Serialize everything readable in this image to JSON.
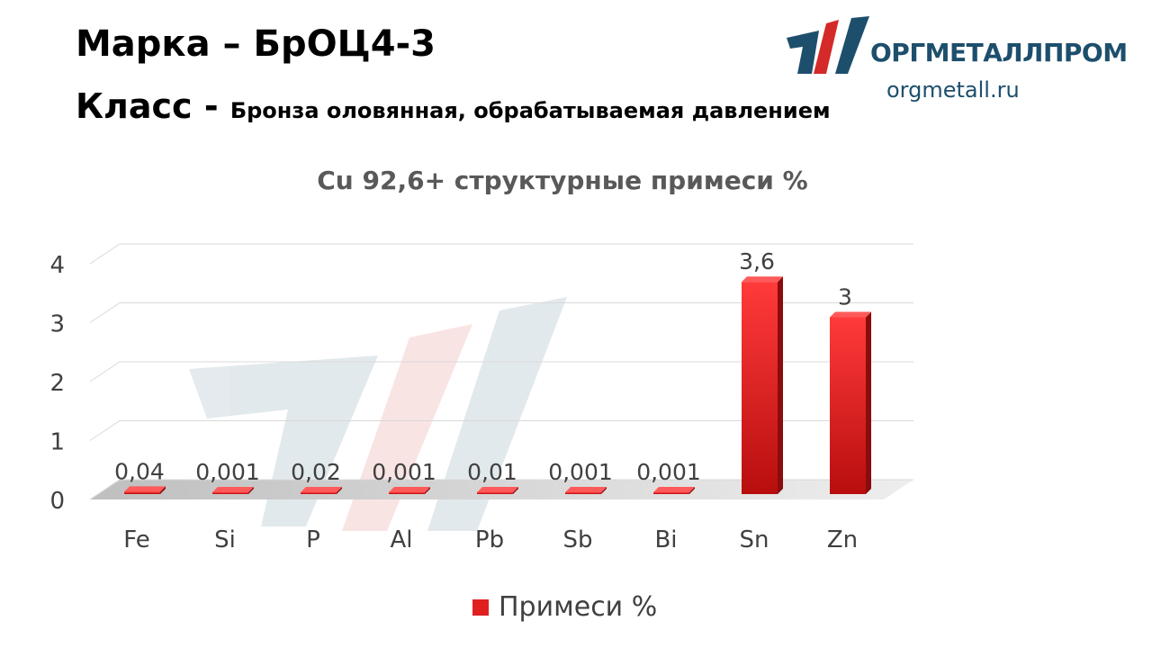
{
  "header": {
    "grade_label": "Марка",
    "grade_dash": "–",
    "grade_value": "БрОЦ4-3",
    "class_label": "Класс -",
    "class_value": "Бронза оловянная, обрабатываемая давлением"
  },
  "logo": {
    "name": "ОРГМЕТАЛЛПРОМ",
    "url": "orgmetall.ru"
  },
  "colors": {
    "bar": "#e02020",
    "bar_dark": "#8a0c0c",
    "brand_blue": "#1d4f6c",
    "brand_red": "#d42a2a",
    "text": "#404040"
  },
  "chart_data": {
    "type": "bar",
    "title": "Cu 92,6+ структурные примеси %",
    "categories": [
      "Fe",
      "Si",
      "P",
      "Al",
      "Pb",
      "Sb",
      "Bi",
      "Sn",
      "Zn"
    ],
    "series": [
      {
        "name": "Примеси %",
        "values": [
          0.04,
          0.001,
          0.02,
          0.001,
          0.01,
          0.001,
          0.001,
          3.6,
          3
        ],
        "labels": [
          "0,04",
          "0,001",
          "0,02",
          "0,001",
          "0,01",
          "0,001",
          "0,001",
          "3,6",
          "3"
        ]
      }
    ],
    "yticks": [
      "0",
      "1",
      "2",
      "3",
      "4"
    ],
    "ylim": [
      0,
      4
    ],
    "grid": true,
    "legend": "bottom",
    "xlabel": "",
    "ylabel": ""
  }
}
